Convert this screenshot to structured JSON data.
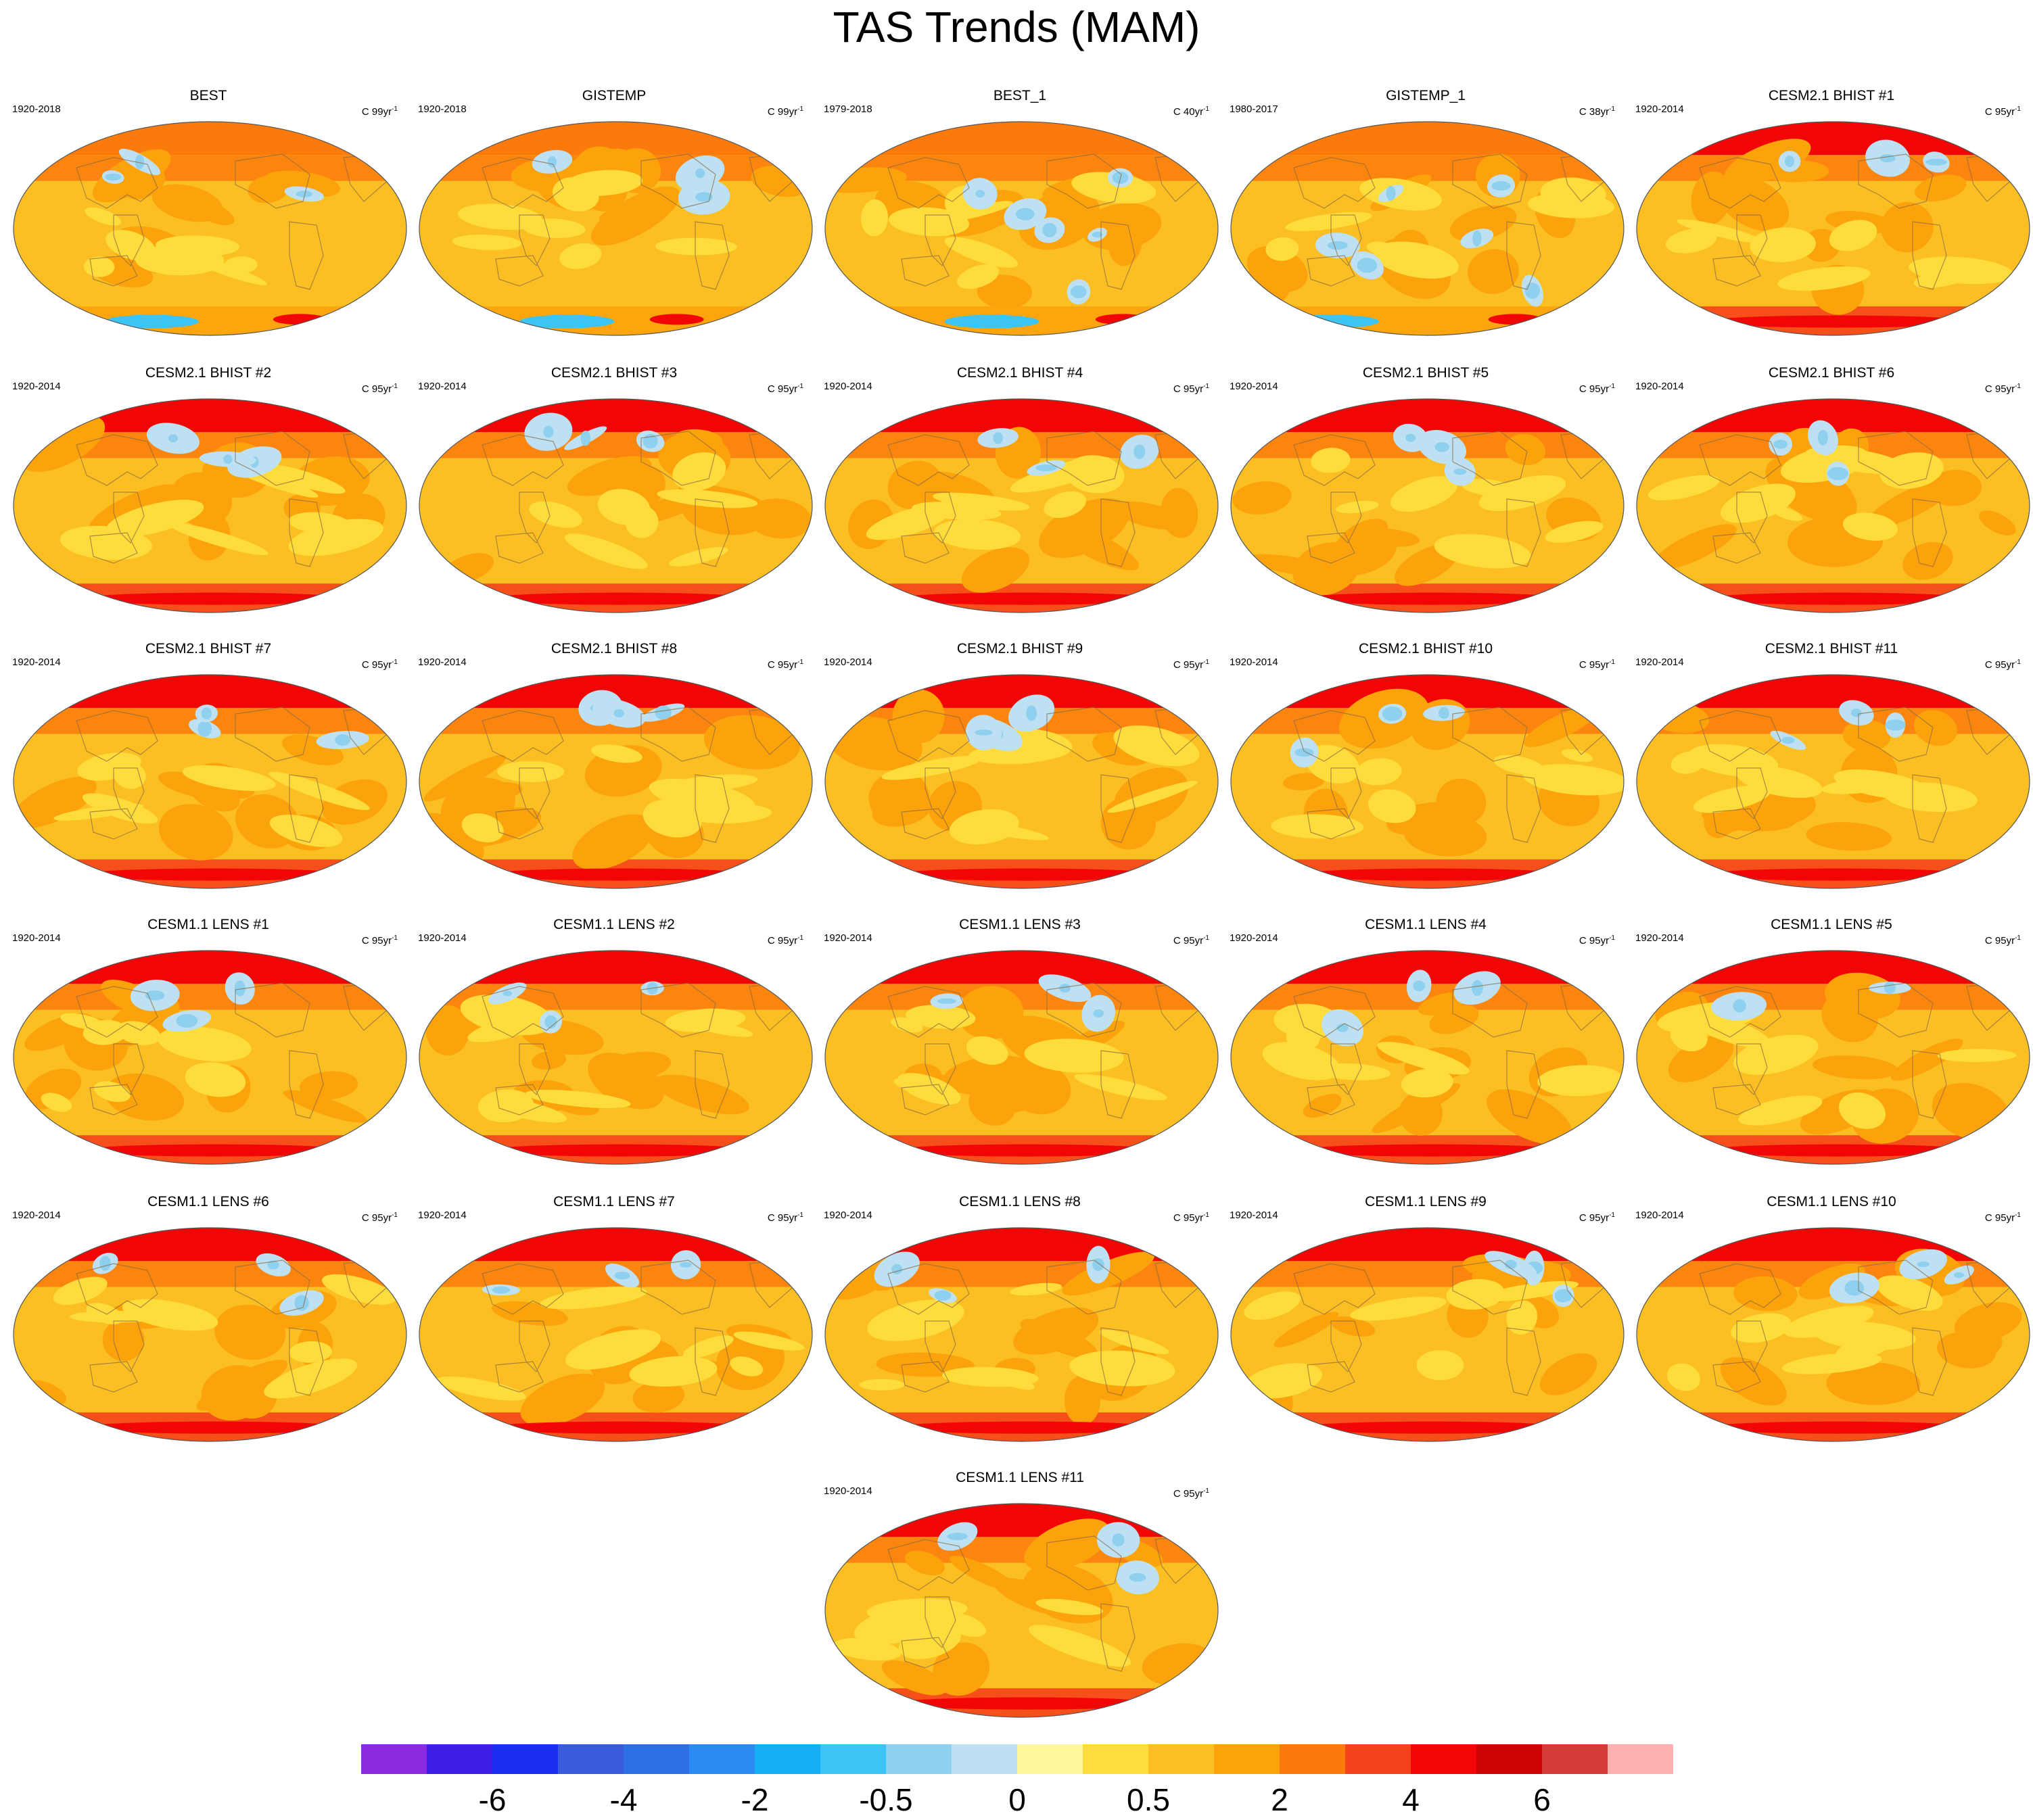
{
  "title": "TAS Trends (MAM)",
  "panels": [
    {
      "title": "BEST",
      "period": "1920-2018",
      "units": "C 99yr",
      "units_exp": "-1",
      "pattern": "obs"
    },
    {
      "title": "GISTEMP",
      "period": "1920-2018",
      "units": "C 99yr",
      "units_exp": "-1",
      "pattern": "obs"
    },
    {
      "title": "BEST_1",
      "period": "1979-2018",
      "units": "C 40yr",
      "units_exp": "-1",
      "pattern": "obs-recent"
    },
    {
      "title": "GISTEMP_1",
      "period": "1980-2017",
      "units": "C 38yr",
      "units_exp": "-1",
      "pattern": "obs-recent"
    },
    {
      "title": "CESM2.1 BHIST #1",
      "period": "1920-2014",
      "units": "C 95yr",
      "units_exp": "-1",
      "pattern": "model"
    },
    {
      "title": "CESM2.1 BHIST #2",
      "period": "1920-2014",
      "units": "C 95yr",
      "units_exp": "-1",
      "pattern": "model"
    },
    {
      "title": "CESM2.1 BHIST #3",
      "period": "1920-2014",
      "units": "C 95yr",
      "units_exp": "-1",
      "pattern": "model"
    },
    {
      "title": "CESM2.1 BHIST #4",
      "period": "1920-2014",
      "units": "C 95yr",
      "units_exp": "-1",
      "pattern": "model"
    },
    {
      "title": "CESM2.1 BHIST #5",
      "period": "1920-2014",
      "units": "C 95yr",
      "units_exp": "-1",
      "pattern": "model"
    },
    {
      "title": "CESM2.1 BHIST #6",
      "period": "1920-2014",
      "units": "C 95yr",
      "units_exp": "-1",
      "pattern": "model"
    },
    {
      "title": "CESM2.1 BHIST #7",
      "period": "1920-2014",
      "units": "C 95yr",
      "units_exp": "-1",
      "pattern": "model"
    },
    {
      "title": "CESM2.1 BHIST #8",
      "period": "1920-2014",
      "units": "C 95yr",
      "units_exp": "-1",
      "pattern": "model"
    },
    {
      "title": "CESM2.1 BHIST #9",
      "period": "1920-2014",
      "units": "C 95yr",
      "units_exp": "-1",
      "pattern": "model"
    },
    {
      "title": "CESM2.1 BHIST #10",
      "period": "1920-2014",
      "units": "C 95yr",
      "units_exp": "-1",
      "pattern": "model"
    },
    {
      "title": "CESM2.1 BHIST #11",
      "period": "1920-2014",
      "units": "C 95yr",
      "units_exp": "-1",
      "pattern": "model"
    },
    {
      "title": "CESM1.1 LENS #1",
      "period": "1920-2014",
      "units": "C 95yr",
      "units_exp": "-1",
      "pattern": "model"
    },
    {
      "title": "CESM1.1 LENS #2",
      "period": "1920-2014",
      "units": "C 95yr",
      "units_exp": "-1",
      "pattern": "model"
    },
    {
      "title": "CESM1.1 LENS #3",
      "period": "1920-2014",
      "units": "C 95yr",
      "units_exp": "-1",
      "pattern": "model"
    },
    {
      "title": "CESM1.1 LENS #4",
      "period": "1920-2014",
      "units": "C 95yr",
      "units_exp": "-1",
      "pattern": "model"
    },
    {
      "title": "CESM1.1 LENS #5",
      "period": "1920-2014",
      "units": "C 95yr",
      "units_exp": "-1",
      "pattern": "model"
    },
    {
      "title": "CESM1.1 LENS #6",
      "period": "1920-2014",
      "units": "C 95yr",
      "units_exp": "-1",
      "pattern": "model"
    },
    {
      "title": "CESM1.1 LENS #7",
      "period": "1920-2014",
      "units": "C 95yr",
      "units_exp": "-1",
      "pattern": "model"
    },
    {
      "title": "CESM1.1 LENS #8",
      "period": "1920-2014",
      "units": "C 95yr",
      "units_exp": "-1",
      "pattern": "model"
    },
    {
      "title": "CESM1.1 LENS #9",
      "period": "1920-2014",
      "units": "C 95yr",
      "units_exp": "-1",
      "pattern": "model"
    },
    {
      "title": "CESM1.1 LENS #10",
      "period": "1920-2014",
      "units": "C 95yr",
      "units_exp": "-1",
      "pattern": "model"
    },
    {
      "title": "CESM1.1 LENS #11",
      "period": "1920-2014",
      "units": "C 95yr",
      "units_exp": "-1",
      "pattern": "model"
    }
  ],
  "colorbar": {
    "colors": [
      "#8a2be2",
      "#3d1fe6",
      "#1c2ff0",
      "#3a5bdc",
      "#2f6fe6",
      "#2a8cf2",
      "#13b0f5",
      "#3cc4f5",
      "#8ed0ee",
      "#bde0f3",
      "#fff59a",
      "#fddc3c",
      "#fbbf23",
      "#fca20b",
      "#fb7a0c",
      "#f5421a",
      "#f20505",
      "#cc0404",
      "#d43c3c",
      "#ffb0b0"
    ],
    "labels": [
      {
        "text": "-6",
        "boundary": 2
      },
      {
        "text": "-4",
        "boundary": 4
      },
      {
        "text": "-2",
        "boundary": 6
      },
      {
        "text": "-0.5",
        "boundary": 8
      },
      {
        "text": "0",
        "boundary": 10
      },
      {
        "text": "0.5",
        "boundary": 12
      },
      {
        "text": "2",
        "boundary": 14
      },
      {
        "text": "4",
        "boundary": 16
      },
      {
        "text": "6",
        "boundary": 18
      }
    ]
  }
}
